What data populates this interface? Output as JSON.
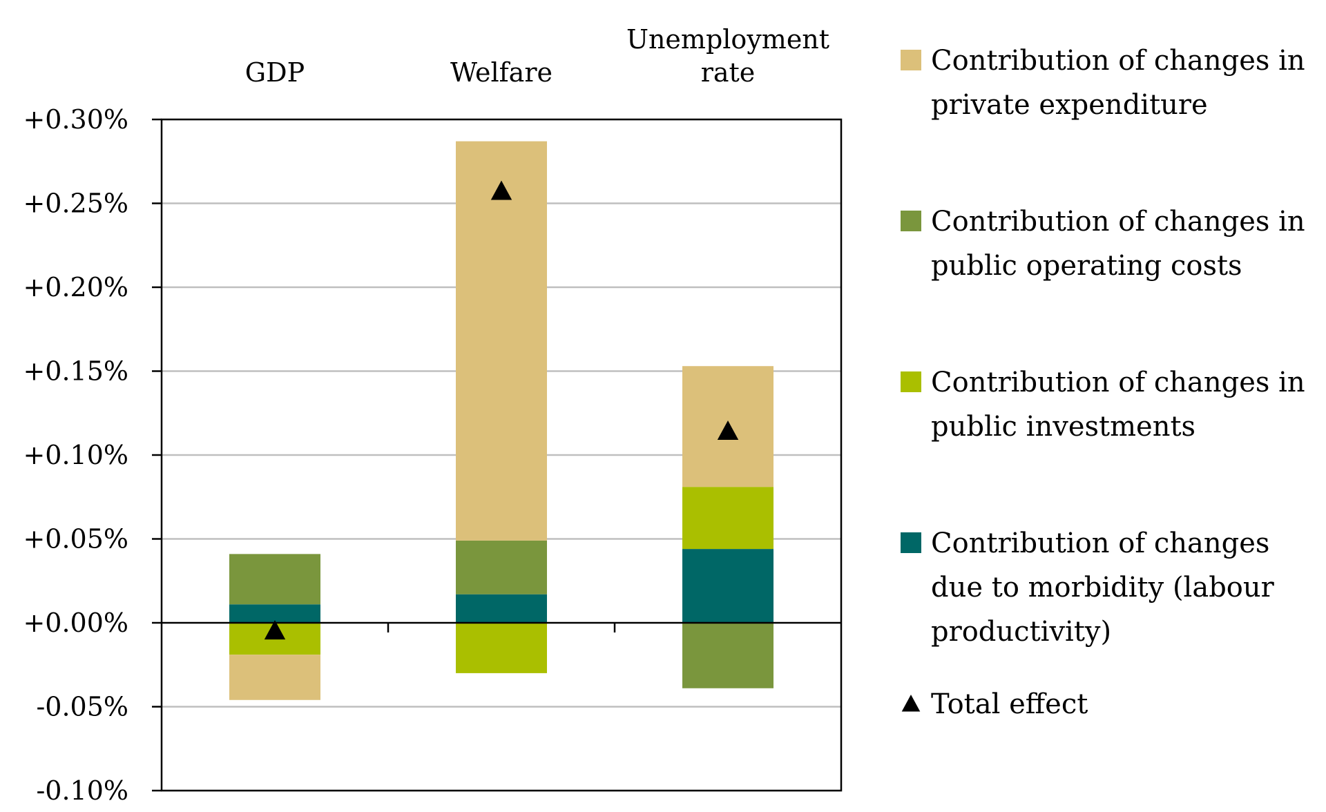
{
  "chart_data": {
    "type": "bar",
    "stacked": true,
    "categories": [
      [
        "GDP"
      ],
      [
        "Welfare"
      ],
      [
        "Unemployment",
        "rate"
      ]
    ],
    "series": [
      {
        "name": "Contribution of changes in private expenditure",
        "legend_lines": [
          "Contribution of changes in",
          "private expenditure"
        ],
        "color": "#DCC07A",
        "values": [
          -0.027,
          0.238,
          0.072
        ]
      },
      {
        "name": "Contribution of changes in public operating costs",
        "legend_lines": [
          "Contribution of changes in",
          "public operating costs"
        ],
        "color": "#7A963D",
        "values": [
          0.03,
          0.032,
          -0.039
        ]
      },
      {
        "name": "Contribution of changes in public investments",
        "legend_lines": [
          "Contribution of changes in",
          "public investments"
        ],
        "color": "#AABF00",
        "values": [
          -0.019,
          -0.03,
          0.037
        ]
      },
      {
        "name": "Contribution of changes due to morbidity (labour productivity)",
        "legend_lines": [
          "Contribution of changes",
          "due to morbidity (labour",
          "productivity)"
        ],
        "color": "#006766",
        "values": [
          0.011,
          0.017,
          0.044
        ]
      }
    ],
    "total_effect": {
      "name": "Total effect",
      "values": [
        -0.005,
        0.257,
        0.114
      ]
    },
    "ylim": [
      -0.1,
      0.3
    ],
    "yticks": [
      -0.1,
      -0.05,
      0.0,
      0.05,
      0.1,
      0.15,
      0.2,
      0.25,
      0.3
    ],
    "ytick_labels": [
      "-0.10%",
      "-0.05%",
      "+0.00%",
      "+0.05%",
      "+0.10%",
      "+0.15%",
      "+0.20%",
      "+0.25%",
      "+0.30%"
    ],
    "grid": true,
    "legend_position": "right"
  }
}
